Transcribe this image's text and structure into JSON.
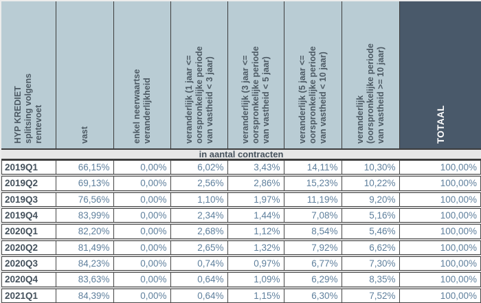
{
  "colors": {
    "header_bg": "#b9ccd4",
    "header_text": "#4d5a64",
    "total_header_bg": "#49596a",
    "total_header_text": "#ffffff",
    "subheader_bg": "#e7e7e7",
    "value_text": "#5e7f9c",
    "label_text": "#44515c",
    "border": "#3c3c3c",
    "row_gap": "#d9d9d9"
  },
  "table": {
    "headers": [
      "HYP KREDIET\nsplitsing volgens\nrentevoet",
      "vast",
      "enkel neerwaartse\nveranderlijkheid",
      "veranderlijk (1 jaar <=\noorspronkelijke periode\nvan vastheid < 3 jaar)",
      "veranderlijk (3 jaar <=\noorspronkelijke periode\nvan vastheid < 5 jaar)",
      "veranderlijk (5 jaar <=\noorspronkelijke periode\nvan vastheid < 10 jaar)",
      "veranderlijk\n(oorspronkelijke periode\nvan vastheid >= 10 jaar)",
      "TOTAAL"
    ],
    "subheader": "in aantal contracten",
    "rows": [
      {
        "label": "2019Q1",
        "values": [
          "66,15%",
          "0,00%",
          "6,02%",
          "3,43%",
          "14,11%",
          "10,30%",
          "100,00%"
        ]
      },
      {
        "label": "2019Q2",
        "values": [
          "69,13%",
          "0,00%",
          "2,56%",
          "2,86%",
          "15,23%",
          "10,22%",
          "100,00%"
        ]
      },
      {
        "label": "2019Q3",
        "values": [
          "76,56%",
          "0,00%",
          "1,10%",
          "1,97%",
          "11,19%",
          "9,20%",
          "100,00%"
        ]
      },
      {
        "label": "2019Q4",
        "values": [
          "83,99%",
          "0,00%",
          "2,34%",
          "1,44%",
          "7,08%",
          "5,16%",
          "100,00%"
        ]
      },
      {
        "label": "2020Q1",
        "values": [
          "82,20%",
          "0,00%",
          "2,68%",
          "1,12%",
          "8,54%",
          "5,46%",
          "100,00%"
        ]
      },
      {
        "label": "2020Q2",
        "values": [
          "81,49%",
          "0,00%",
          "2,65%",
          "1,32%",
          "7,92%",
          "6,62%",
          "100,00%"
        ]
      },
      {
        "label": "2020Q3",
        "values": [
          "84,23%",
          "0,00%",
          "0,74%",
          "0,97%",
          "6,77%",
          "7,30%",
          "100,00%"
        ]
      },
      {
        "label": "2020Q4",
        "values": [
          "83,63%",
          "0,00%",
          "0,64%",
          "1,09%",
          "6,29%",
          "8,35%",
          "100,00%"
        ]
      },
      {
        "label": "2021Q1",
        "values": [
          "84,39%",
          "0,00%",
          "0,64%",
          "1,15%",
          "6,30%",
          "7,52%",
          "100,00%"
        ]
      }
    ]
  }
}
